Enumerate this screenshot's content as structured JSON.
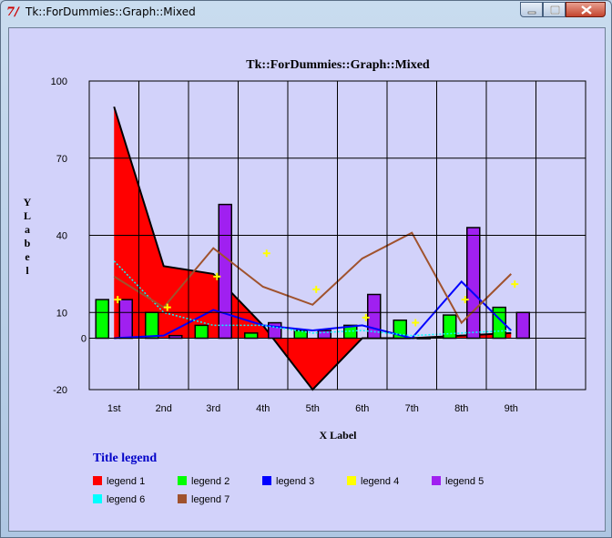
{
  "window": {
    "title": "Tk::ForDummies::Graph::Mixed",
    "app_icon": "tk-feather-icon",
    "controls": [
      "minimize-icon",
      "maximize-icon",
      "close-icon"
    ]
  },
  "colors": {
    "client_bg": "#d2d2fa",
    "legend_title": "#0000c8"
  },
  "chart_data": {
    "type": "mixed",
    "title": "Tk::ForDummies::Graph::Mixed",
    "xlabel": "X Label",
    "ylabel": "Y Label",
    "ylim": [
      -20,
      100
    ],
    "yticks": [
      -20,
      0,
      10,
      40,
      70,
      100
    ],
    "categories": [
      "1st",
      "2nd",
      "3rd",
      "4th",
      "5th",
      "6th",
      "7th",
      "8th",
      "9th"
    ],
    "grid": true,
    "legend": {
      "title": "Title legend",
      "placement": "bottom-left"
    },
    "series": [
      {
        "name": "legend 1",
        "kind": "area",
        "color": "#ff0000",
        "values": [
          90,
          28,
          25,
          5,
          -20,
          0,
          0,
          1,
          2
        ]
      },
      {
        "name": "legend 2",
        "kind": "bar",
        "color": "#00ff00",
        "values": [
          15,
          10,
          5,
          2,
          3,
          5,
          7,
          9,
          12
        ]
      },
      {
        "name": "legend 3",
        "kind": "line",
        "color": "#0000ff",
        "values": [
          0,
          1,
          11,
          5,
          3,
          5,
          0,
          22,
          3
        ]
      },
      {
        "name": "legend 4",
        "kind": "point",
        "color": "#ffff00",
        "values": [
          15,
          12,
          24,
          33,
          19,
          8,
          6,
          15,
          21
        ]
      },
      {
        "name": "legend 5",
        "kind": "bar",
        "color": "#a020f0",
        "values": [
          15,
          1,
          52,
          6,
          3,
          17,
          0,
          43,
          10
        ]
      },
      {
        "name": "legend 6",
        "kind": "dashes",
        "color": "#00ffff",
        "values": [
          30,
          10,
          5,
          5,
          2,
          3,
          1,
          2,
          3
        ]
      },
      {
        "name": "legend 7",
        "kind": "line",
        "color": "#a0522d",
        "values": [
          24,
          12,
          35,
          20,
          13,
          31,
          41,
          6,
          25
        ]
      }
    ]
  }
}
